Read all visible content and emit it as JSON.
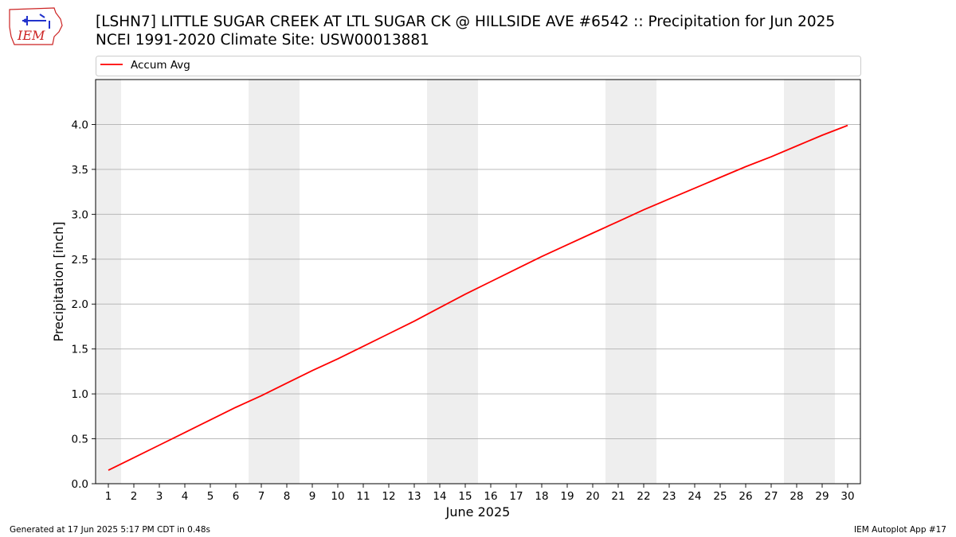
{
  "header": {
    "title_line1": "[LSHN7] LITTLE SUGAR CREEK  AT LTL SUGAR CK @ HILLSIDE AVE #6542 :: Precipitation for Jun 2025",
    "title_line2": "NCEI 1991-2020 Climate Site: USW00013881",
    "logo_text": "IEM"
  },
  "footer": {
    "left": "Generated at 17 Jun 2025 5:17 PM CDT in 0.48s",
    "right": "IEM Autoplot App #17"
  },
  "colors": {
    "series": "#ff0000",
    "weekend_band": "#eeeeee",
    "grid": "#b0b0b0",
    "logo": "#cc2222"
  },
  "chart_data": {
    "type": "line",
    "xlabel": "June 2025",
    "ylabel": "Precipitation [inch]",
    "xlim": [
      0.5,
      30.5
    ],
    "ylim": [
      0.0,
      4.5
    ],
    "x_ticks": [
      1,
      2,
      3,
      4,
      5,
      6,
      7,
      8,
      9,
      10,
      11,
      12,
      13,
      14,
      15,
      16,
      17,
      18,
      19,
      20,
      21,
      22,
      23,
      24,
      25,
      26,
      27,
      28,
      29,
      30
    ],
    "y_ticks": [
      0.0,
      0.5,
      1.0,
      1.5,
      2.0,
      2.5,
      3.0,
      3.5,
      4.0
    ],
    "y_tick_labels": [
      "0.0",
      "0.5",
      "1.0",
      "1.5",
      "2.0",
      "2.5",
      "3.0",
      "3.5",
      "4.0"
    ],
    "grid": "horizontal",
    "legend_position": "top",
    "weekend_days": [
      1,
      7,
      8,
      14,
      15,
      21,
      22,
      28,
      29
    ],
    "series": [
      {
        "name": "Accum Avg",
        "x": [
          1,
          2,
          3,
          4,
          5,
          6,
          7,
          8,
          9,
          10,
          11,
          12,
          13,
          14,
          15,
          16,
          17,
          18,
          19,
          20,
          21,
          22,
          23,
          24,
          25,
          26,
          27,
          28,
          29,
          30
        ],
        "values": [
          0.15,
          0.29,
          0.43,
          0.57,
          0.71,
          0.85,
          0.98,
          1.12,
          1.26,
          1.39,
          1.53,
          1.67,
          1.81,
          1.96,
          2.11,
          2.25,
          2.39,
          2.53,
          2.66,
          2.79,
          2.92,
          3.05,
          3.17,
          3.29,
          3.41,
          3.53,
          3.64,
          3.76,
          3.88,
          3.99
        ]
      }
    ]
  }
}
